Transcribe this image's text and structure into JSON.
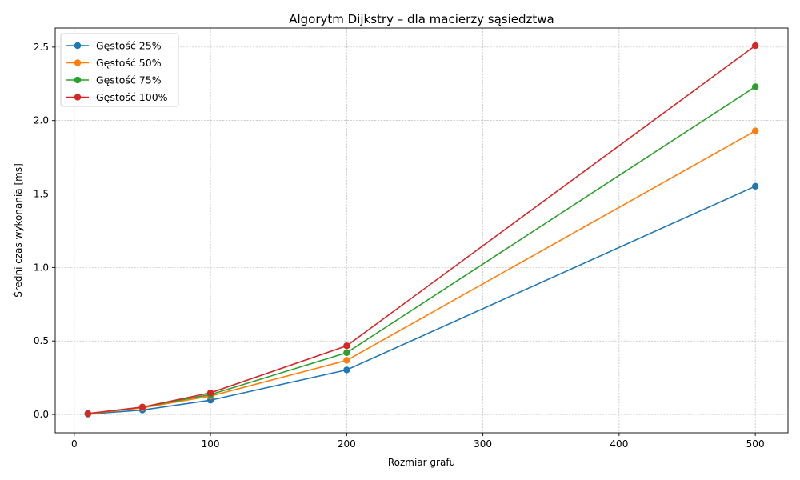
{
  "chart_data": {
    "type": "line",
    "title": "Algorytm Dijkstry – dla macierzy sąsiedztwa",
    "xlabel": "Rozmiar grafu",
    "ylabel": "Średni czas wykonania [ms]",
    "xlim": [
      -14,
      524
    ],
    "ylim": [
      -0.125,
      2.63
    ],
    "xticks": [
      0,
      100,
      200,
      300,
      400,
      500
    ],
    "yticks": [
      0.0,
      0.5,
      1.0,
      1.5,
      2.0,
      2.5
    ],
    "ytick_labels": [
      "0.0",
      "0.5",
      "1.0",
      "1.5",
      "2.0",
      "2.5"
    ],
    "grid": true,
    "legend_position": "upper-left",
    "x": [
      10,
      50,
      100,
      200,
      500
    ],
    "series": [
      {
        "name": "Gęstość 25%",
        "color": "#1f77b4",
        "values": [
          0.002,
          0.03,
          0.097,
          0.303,
          1.553
        ]
      },
      {
        "name": "Gęstość 50%",
        "color": "#ff7f0e",
        "values": [
          0.004,
          0.045,
          0.125,
          0.368,
          1.93
        ]
      },
      {
        "name": "Gęstość 75%",
        "color": "#2ca02c",
        "values": [
          0.005,
          0.05,
          0.135,
          0.42,
          2.23
        ]
      },
      {
        "name": "Gęstość 100%",
        "color": "#d62728",
        "values": [
          0.006,
          0.05,
          0.147,
          0.467,
          2.51
        ]
      }
    ]
  }
}
